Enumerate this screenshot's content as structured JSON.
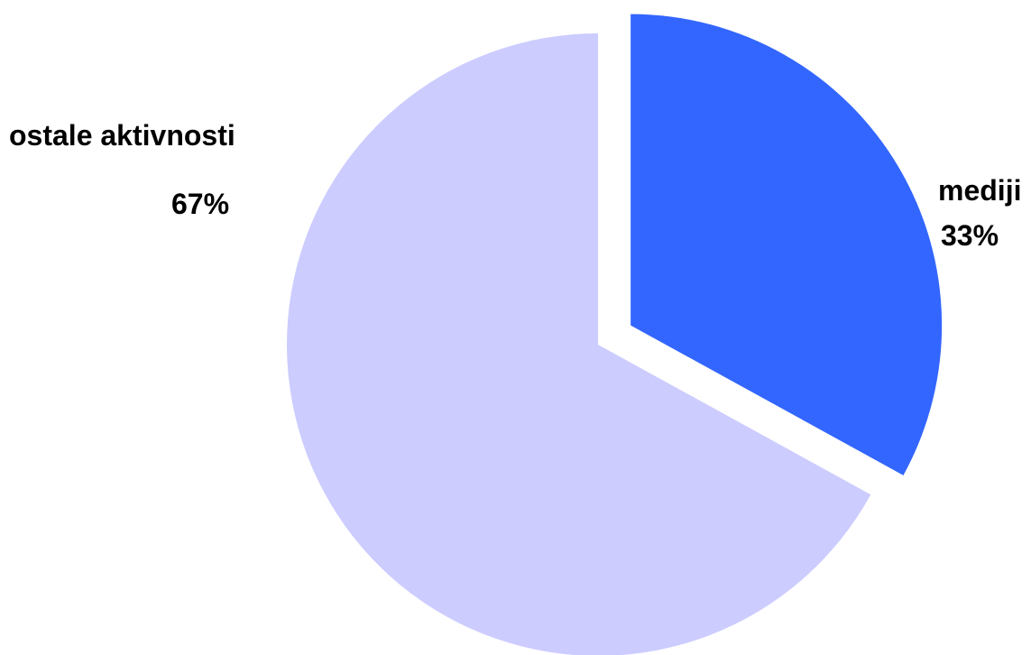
{
  "chart_data": {
    "type": "pie",
    "categories": [
      "mediji",
      "ostale aktivnosti"
    ],
    "values": [
      33,
      67
    ],
    "value_labels": [
      "33%",
      "67%"
    ],
    "colors": [
      "#3366FF",
      "#CCCCFF"
    ],
    "exploded": [
      "mediji"
    ],
    "legend": "none"
  }
}
